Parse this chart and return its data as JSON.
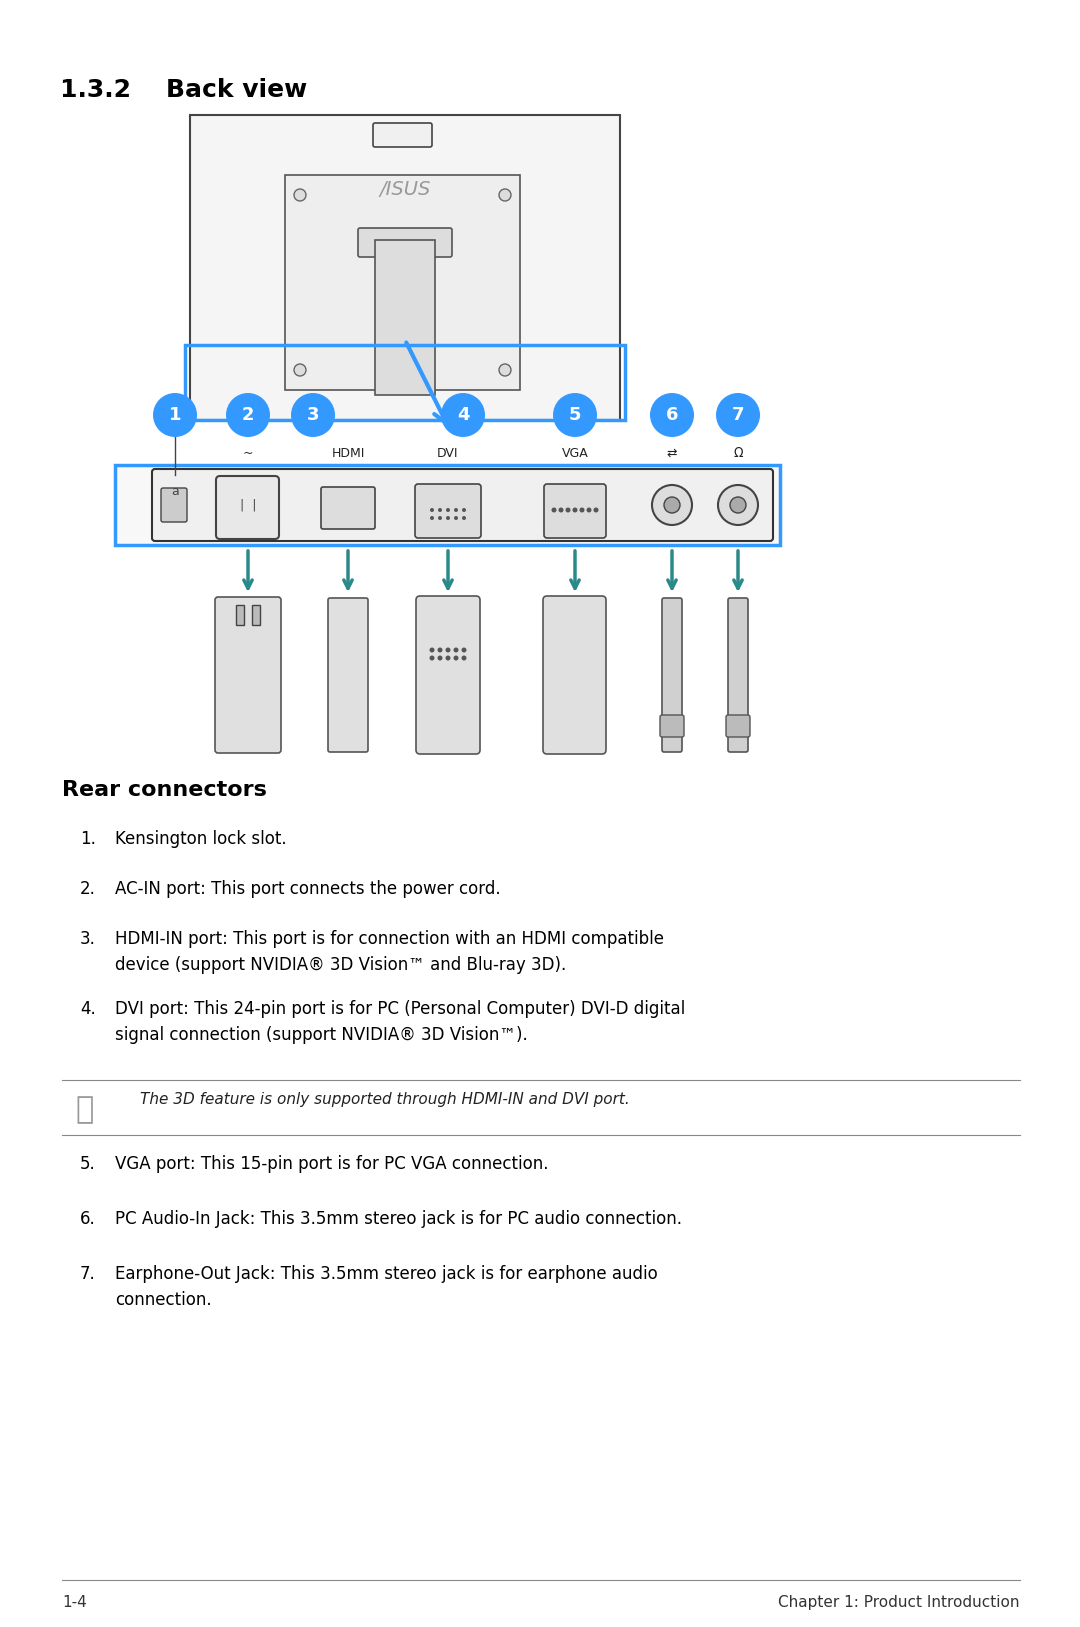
{
  "page_bg": "#ffffff",
  "title_section": "1.3.2    Back view",
  "section_heading": "Rear connectors",
  "list_items": [
    {
      "num": "1.",
      "text": "Kensington lock slot."
    },
    {
      "num": "2.",
      "text": "AC-IN port: This port connects the power cord."
    },
    {
      "num": "3.",
      "text": "HDMI-IN port: This port is for connection with an HDMI compatible\ndevice (support NVIDIA® 3D Vision™ and Blu-ray 3D)."
    },
    {
      "num": "4.",
      "text": "DVI port: This 24-pin port is for PC (Personal Computer) DVI-D digital\nsignal connection (support NVIDIA® 3D Vision™)."
    },
    {
      "num": "5.",
      "text": "VGA port: This 15-pin port is for PC VGA connection."
    },
    {
      "num": "6.",
      "text": "PC Audio-In Jack: This 3.5mm stereo jack is for PC audio connection."
    },
    {
      "num": "7.",
      "text": "Earphone-Out Jack: This 3.5mm stereo jack is for earphone audio\nconnection."
    }
  ],
  "note_text": "The 3D feature is only supported through HDMI-IN and DVI port.",
  "footer_left": "1-4",
  "footer_right": "Chapter 1: Product Introduction",
  "blue_color": "#3399ff",
  "teal_color": "#008080",
  "connector_labels": [
    "~",
    "HDMI",
    "DVI",
    "VGA",
    "⇄",
    "Ω"
  ],
  "bubble_numbers": [
    "1",
    "2",
    "3",
    "4",
    "5",
    "6",
    "7"
  ],
  "font_family": "DejaVu Sans"
}
